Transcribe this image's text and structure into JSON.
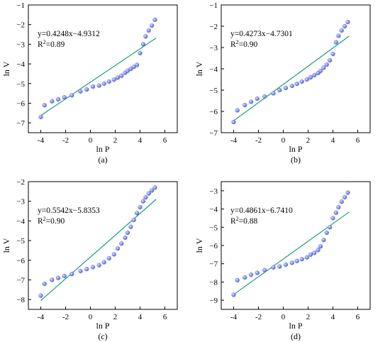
{
  "colors": {
    "marker": "#4a5ad8",
    "marker_highlight": "#dfe3ff",
    "fit_line": "#1f9a86",
    "axis": "#000000"
  },
  "chart_data": [
    {
      "type": "scatter",
      "caption": "(a)",
      "xlabel": "ln P",
      "ylabel": "ln V",
      "xlim": [
        -5,
        7
      ],
      "ylim": [
        -7.5,
        -1
      ],
      "xticks": [
        -4,
        -2,
        0,
        2,
        4,
        6
      ],
      "yticks": [
        -7,
        -6,
        -5,
        -4,
        -3,
        -2,
        -1
      ],
      "equation": "y=0.4248x−4.9312",
      "r2_prefix": "R",
      "r2_sup": "2",
      "r2_value": "=0.89",
      "fit": {
        "slope": 0.4248,
        "intercept": -4.9312,
        "x_range": [
          -4,
          5.3
        ]
      },
      "points": [
        [
          -4.0,
          -6.7
        ],
        [
          -3.7,
          -6.1
        ],
        [
          -3.1,
          -5.9
        ],
        [
          -2.6,
          -5.8
        ],
        [
          -2.1,
          -5.7
        ],
        [
          -1.5,
          -5.6
        ],
        [
          -0.8,
          -5.4
        ],
        [
          -0.3,
          -5.3
        ],
        [
          0.2,
          -5.15
        ],
        [
          0.7,
          -5.1
        ],
        [
          1.1,
          -5.0
        ],
        [
          1.5,
          -4.9
        ],
        [
          1.9,
          -4.8
        ],
        [
          2.2,
          -4.7
        ],
        [
          2.5,
          -4.6
        ],
        [
          2.8,
          -4.45
        ],
        [
          3.0,
          -4.35
        ],
        [
          3.25,
          -4.25
        ],
        [
          3.5,
          -4.15
        ],
        [
          3.75,
          -4.05
        ],
        [
          4.0,
          -3.45
        ],
        [
          4.25,
          -3.0
        ],
        [
          4.45,
          -2.6
        ],
        [
          4.7,
          -2.3
        ],
        [
          4.95,
          -2.05
        ],
        [
          5.2,
          -1.75
        ]
      ]
    },
    {
      "type": "scatter",
      "caption": "(b)",
      "xlabel": "ln P",
      "ylabel": "ln V",
      "xlim": [
        -5,
        7
      ],
      "ylim": [
        -7,
        -1
      ],
      "xticks": [
        -4,
        -2,
        0,
        2,
        4,
        6
      ],
      "yticks": [
        -7,
        -6,
        -5,
        -4,
        -3,
        -2,
        -1
      ],
      "equation": "y=0.4273x−4.7301",
      "r2_prefix": "R",
      "r2_sup": "2",
      "r2_value": "=0.90",
      "fit": {
        "slope": 0.4273,
        "intercept": -4.7301,
        "x_range": [
          -4,
          5.3
        ]
      },
      "points": [
        [
          -4.0,
          -6.5
        ],
        [
          -3.7,
          -5.95
        ],
        [
          -3.1,
          -5.7
        ],
        [
          -2.6,
          -5.55
        ],
        [
          -2.1,
          -5.4
        ],
        [
          -1.5,
          -5.3
        ],
        [
          -0.8,
          -5.15
        ],
        [
          -0.3,
          -5.0
        ],
        [
          0.2,
          -4.9
        ],
        [
          0.7,
          -4.8
        ],
        [
          1.1,
          -4.7
        ],
        [
          1.5,
          -4.6
        ],
        [
          1.9,
          -4.5
        ],
        [
          2.2,
          -4.4
        ],
        [
          2.5,
          -4.3
        ],
        [
          2.8,
          -4.2
        ],
        [
          3.0,
          -4.1
        ],
        [
          3.25,
          -3.95
        ],
        [
          3.5,
          -3.8
        ],
        [
          3.75,
          -3.6
        ],
        [
          4.0,
          -3.3
        ],
        [
          4.25,
          -2.75
        ],
        [
          4.45,
          -2.45
        ],
        [
          4.7,
          -2.2
        ],
        [
          4.95,
          -2.0
        ],
        [
          5.2,
          -1.8
        ]
      ]
    },
    {
      "type": "scatter",
      "caption": "(c)",
      "xlabel": "ln P",
      "ylabel": "ln V",
      "xlim": [
        -5,
        7
      ],
      "ylim": [
        -8.5,
        -2
      ],
      "xticks": [
        -4,
        -2,
        0,
        2,
        4,
        6
      ],
      "yticks": [
        -8,
        -7,
        -6,
        -5,
        -4,
        -3,
        -2
      ],
      "equation": "y=0.5542x−5.8353",
      "r2_prefix": "R",
      "r2_sup": "2",
      "r2_value": "=0.90",
      "fit": {
        "slope": 0.5542,
        "intercept": -5.8353,
        "x_range": [
          -4,
          5.3
        ]
      },
      "points": [
        [
          -4.0,
          -7.8
        ],
        [
          -3.7,
          -7.2
        ],
        [
          -3.1,
          -7.0
        ],
        [
          -2.6,
          -6.9
        ],
        [
          -2.1,
          -6.8
        ],
        [
          -1.5,
          -6.7
        ],
        [
          -0.8,
          -6.55
        ],
        [
          -0.3,
          -6.45
        ],
        [
          0.2,
          -6.35
        ],
        [
          0.7,
          -6.25
        ],
        [
          1.1,
          -6.1
        ],
        [
          1.5,
          -5.9
        ],
        [
          1.9,
          -5.7
        ],
        [
          2.2,
          -5.4
        ],
        [
          2.5,
          -5.15
        ],
        [
          2.8,
          -4.85
        ],
        [
          3.0,
          -4.6
        ],
        [
          3.25,
          -4.3
        ],
        [
          3.5,
          -3.95
        ],
        [
          3.75,
          -3.6
        ],
        [
          4.0,
          -3.3
        ],
        [
          4.25,
          -3.0
        ],
        [
          4.45,
          -2.8
        ],
        [
          4.7,
          -2.6
        ],
        [
          4.95,
          -2.45
        ],
        [
          5.2,
          -2.3
        ]
      ]
    },
    {
      "type": "scatter",
      "caption": "(d)",
      "xlabel": "ln P",
      "ylabel": "ln V",
      "xlim": [
        -5,
        7
      ],
      "ylim": [
        -9.5,
        -2.5
      ],
      "xticks": [
        -4,
        -2,
        0,
        2,
        4,
        6
      ],
      "yticks": [
        -9,
        -8,
        -7,
        -6,
        -5,
        -4,
        -3
      ],
      "equation": "y=0.4861x−6.7410",
      "r2_prefix": "R",
      "r2_sup": "2",
      "r2_value": "=0.88",
      "fit": {
        "slope": 0.4861,
        "intercept": -6.741,
        "x_range": [
          -4,
          5.3
        ]
      },
      "points": [
        [
          -4.0,
          -8.7
        ],
        [
          -3.7,
          -7.9
        ],
        [
          -3.1,
          -7.75
        ],
        [
          -2.6,
          -7.6
        ],
        [
          -2.1,
          -7.5
        ],
        [
          -1.5,
          -7.35
        ],
        [
          -0.8,
          -7.2
        ],
        [
          -0.3,
          -7.15
        ],
        [
          0.2,
          -7.05
        ],
        [
          0.7,
          -6.95
        ],
        [
          1.1,
          -6.85
        ],
        [
          1.5,
          -6.75
        ],
        [
          1.9,
          -6.65
        ],
        [
          2.2,
          -6.5
        ],
        [
          2.5,
          -6.4
        ],
        [
          2.8,
          -6.25
        ],
        [
          3.0,
          -6.05
        ],
        [
          3.25,
          -5.7
        ],
        [
          3.5,
          -5.3
        ],
        [
          3.75,
          -5.0
        ],
        [
          4.0,
          -4.5
        ],
        [
          4.25,
          -4.2
        ],
        [
          4.45,
          -3.9
        ],
        [
          4.7,
          -3.6
        ],
        [
          4.95,
          -3.35
        ],
        [
          5.2,
          -3.1
        ]
      ]
    }
  ]
}
